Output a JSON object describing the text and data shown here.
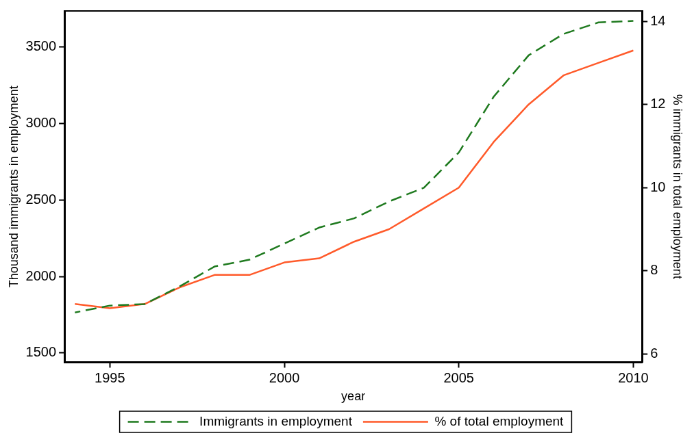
{
  "chart_data": {
    "type": "line",
    "xlabel": "year",
    "ylabel": "Thousand immigrants in employment",
    "y2label": "% immigrants in total employment",
    "x": [
      1994,
      1995,
      1996,
      1997,
      1998,
      1999,
      2000,
      2001,
      2002,
      2003,
      2004,
      2005,
      2006,
      2007,
      2008,
      2009,
      2010
    ],
    "series": [
      {
        "name": "Immigrants in employment",
        "color": "#1f7a1f",
        "line_style": "dashed",
        "values": [
          1765,
          1810,
          1820,
          1935,
          2065,
          2110,
          2215,
          2320,
          2380,
          2490,
          2580,
          2810,
          3175,
          3445,
          3585,
          3660,
          3670
        ]
      },
      {
        "name": "% of total employment",
        "color": "#ff5a2a",
        "line_style": "solid",
        "axis": "y2",
        "values": [
          7.2,
          7.1,
          7.2,
          7.6,
          7.9,
          7.9,
          8.2,
          8.3,
          8.7,
          9.0,
          9.5,
          10.0,
          11.1,
          12.0,
          12.7,
          13.0,
          13.3
        ]
      }
    ],
    "xlim": [
      1993.7,
      2010.25
    ],
    "xticks": [
      1995,
      2000,
      2005,
      2010
    ],
    "ylim": [
      1440,
      3735
    ],
    "yticks": [
      1500,
      2000,
      2500,
      3000,
      3500
    ],
    "y2lim": [
      5.8,
      14.25
    ],
    "y2ticks": [
      6,
      8,
      10,
      12,
      14
    ],
    "legend": "bottom"
  }
}
